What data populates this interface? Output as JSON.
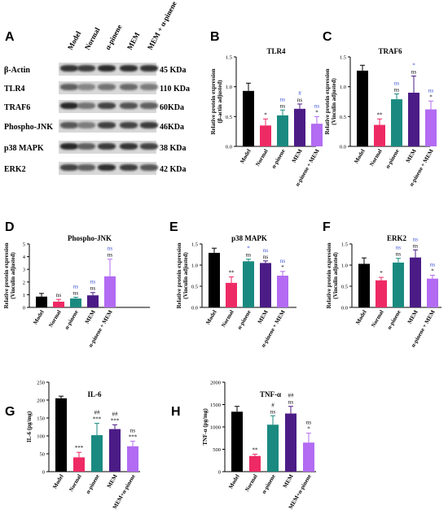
{
  "colors": {
    "Model": "#000000",
    "Normal": "#ee2a64",
    "α-pinene": "#1a8a80",
    "MEM": "#4b1c86",
    "combo": "#b26bf2",
    "sig_black": "#000000",
    "sig_blue": "#3a4fd6"
  },
  "panel_A": {
    "letter": "A",
    "lanes": [
      "Model",
      "Normal",
      "α-pinene",
      "MEM",
      "MEM + α-pinene"
    ],
    "rows": [
      {
        "protein": "β-Actin",
        "kda": "45 KDa",
        "intensity": [
          0.78,
          0.72,
          0.82,
          0.8,
          0.78
        ]
      },
      {
        "protein": "TLR4",
        "kda": "110 KDa",
        "intensity": [
          0.55,
          0.35,
          0.45,
          0.5,
          0.4
        ]
      },
      {
        "protein": "TRAF6",
        "kda": "60KDa",
        "intensity": [
          0.85,
          0.45,
          0.7,
          0.62,
          0.55
        ]
      },
      {
        "protein": "Phospho-JNK",
        "kda": "46KDa",
        "intensity": [
          0.6,
          0.4,
          0.72,
          0.7,
          0.75
        ]
      },
      {
        "protein": "p38 MAPK",
        "kda": "38 KDa",
        "intensity": [
          0.85,
          0.55,
          0.75,
          0.78,
          0.7
        ]
      },
      {
        "protein": "ERK2",
        "kda": "42 KDa",
        "intensity": [
          0.7,
          0.55,
          0.8,
          0.72,
          0.6
        ]
      }
    ]
  },
  "chart_data": [
    {
      "panel": "B",
      "type": "bar",
      "title": "TLR4",
      "ylabel": "Relative protein expression\n(β-actin adjusted)",
      "ylim": [
        0,
        1.5
      ],
      "yticks": [
        "0.0",
        "0.5",
        "1.0",
        "1.5"
      ],
      "categories": [
        "Model",
        "Normal",
        "α-pinene",
        "MEM",
        "α-pinene + MEM"
      ],
      "values": [
        0.93,
        0.35,
        0.52,
        0.63,
        0.38
      ],
      "errors": [
        0.13,
        0.11,
        0.09,
        0.08,
        0.12
      ],
      "annotations": [
        [],
        [
          "*"
        ],
        [
          "ns",
          "ns"
        ],
        [
          "#",
          "ns"
        ],
        [
          "ns",
          "*"
        ]
      ],
      "annotation_colors": [
        [],
        [
          "black"
        ],
        [
          "blue",
          "black"
        ],
        [
          "blue",
          "black"
        ],
        [
          "blue",
          "black"
        ]
      ]
    },
    {
      "panel": "C",
      "type": "bar",
      "title": "TRAF6",
      "ylabel": "Relative protein expression\n(Vinculin adjusted)",
      "ylim": [
        0,
        1.5
      ],
      "yticks": [
        "0.0",
        "0.5",
        "1.0",
        "1.5"
      ],
      "categories": [
        "Model",
        "Normal",
        "α-pinene",
        "MEM",
        "α-pinene + MEM"
      ],
      "values": [
        1.27,
        0.36,
        0.79,
        0.9,
        0.62
      ],
      "errors": [
        0.09,
        0.1,
        0.09,
        0.28,
        0.14
      ],
      "annotations": [
        [],
        [
          "**"
        ],
        [
          "ns",
          "ns"
        ],
        [
          "*",
          "ns"
        ],
        [
          "ns",
          "*"
        ]
      ],
      "annotation_colors": [
        [],
        [
          "black"
        ],
        [
          "blue",
          "black"
        ],
        [
          "blue",
          "black"
        ],
        [
          "blue",
          "black"
        ]
      ]
    },
    {
      "panel": "D",
      "type": "bar",
      "title": "Phospho-JNK",
      "ylabel": "Relative protein expression\n(Vinculin adjusted)",
      "ylim": [
        0,
        5
      ],
      "yticks": [
        "0",
        "1",
        "2",
        "3",
        "4",
        "5"
      ],
      "categories": [
        "Model",
        "Normal",
        "α-pinene",
        "MEM",
        "α-pinene + MEM"
      ],
      "values": [
        0.85,
        0.45,
        0.7,
        0.95,
        2.45
      ],
      "errors": [
        0.25,
        0.18,
        0.1,
        0.22,
        1.35
      ],
      "annotations": [
        [],
        [
          "ns"
        ],
        [
          "ns",
          "ns"
        ],
        [
          "ns",
          "ns"
        ],
        [
          "ns",
          "ns"
        ]
      ],
      "annotation_colors": [
        [],
        [
          "black"
        ],
        [
          "blue",
          "black"
        ],
        [
          "blue",
          "black"
        ],
        [
          "blue",
          "black"
        ]
      ]
    },
    {
      "panel": "E",
      "type": "bar",
      "title": "p38 MAPK",
      "ylabel": "Relative protein expression\n(Vinculin adjusted)",
      "ylim": [
        0,
        1.5
      ],
      "yticks": [
        "0.0",
        "0.5",
        "1.0",
        "1.5"
      ],
      "categories": [
        "Model",
        "Normal",
        "α-pinene",
        "MEM",
        "α-pinene + MEM"
      ],
      "values": [
        1.29,
        0.58,
        1.09,
        1.05,
        0.75
      ],
      "errors": [
        0.11,
        0.14,
        0.05,
        0.05,
        0.1
      ],
      "annotations": [
        [],
        [
          "**"
        ],
        [
          "*",
          "ns"
        ],
        [
          "ns",
          "ns"
        ],
        [
          "ns",
          "*"
        ]
      ],
      "annotation_colors": [
        [],
        [
          "black"
        ],
        [
          "blue",
          "black"
        ],
        [
          "blue",
          "black"
        ],
        [
          "blue",
          "black"
        ]
      ]
    },
    {
      "panel": "F",
      "type": "bar",
      "title": "ERK2",
      "ylabel": "Relative protein expression\n(Vinculin adjusted)",
      "ylim": [
        0,
        1.5
      ],
      "yticks": [
        "0.0",
        "0.5",
        "1.0",
        "1.5"
      ],
      "categories": [
        "Model",
        "Normal",
        "α-pinene",
        "MEM",
        "α-pinene + MEM"
      ],
      "values": [
        1.03,
        0.64,
        1.06,
        1.18,
        0.68
      ],
      "errors": [
        0.14,
        0.07,
        0.1,
        0.18,
        0.08
      ],
      "annotations": [
        [],
        [
          "*"
        ],
        [
          "ns",
          "ns"
        ],
        [
          "ns",
          "ns"
        ],
        [
          "ns",
          "*"
        ]
      ],
      "annotation_colors": [
        [],
        [
          "black"
        ],
        [
          "blue",
          "black"
        ],
        [
          "blue",
          "black"
        ],
        [
          "blue",
          "black"
        ]
      ]
    },
    {
      "panel": "G",
      "type": "bar",
      "title": "IL-6",
      "ylabel": "IL-6 (pg/mg)",
      "ylim": [
        0,
        250
      ],
      "yticks": [
        "0",
        "50",
        "100",
        "150",
        "200",
        "250"
      ],
      "categories": [
        "Model",
        "Normal",
        "α-pinene",
        "MEM",
        "MEM+α-pinene"
      ],
      "values": [
        205,
        40,
        102,
        119,
        71
      ],
      "errors": [
        6,
        14,
        33,
        12,
        14
      ],
      "annotations": [
        [],
        [
          "***"
        ],
        [
          "##",
          "***"
        ],
        [
          "##",
          "***"
        ],
        [
          "ns",
          "***"
        ]
      ],
      "annotation_colors": [
        [],
        [
          "black"
        ],
        [
          "black",
          "black"
        ],
        [
          "black",
          "black"
        ],
        [
          "black",
          "black"
        ]
      ]
    },
    {
      "panel": "H",
      "type": "bar",
      "title": "TNF-α",
      "ylabel": "TNF-α (pg/mg)",
      "ylim": [
        0,
        2000
      ],
      "yticks": [
        "0",
        "500",
        "1000",
        "1500",
        "2000"
      ],
      "categories": [
        "Model",
        "Normal",
        "α-pinene",
        "MEM",
        "MEM+α-pinene"
      ],
      "values": [
        1340,
        350,
        1050,
        1300,
        650
      ],
      "errors": [
        120,
        40,
        200,
        160,
        210
      ],
      "annotations": [
        [],
        [
          "**"
        ],
        [
          "#",
          "ns"
        ],
        [
          "##",
          "ns"
        ],
        [
          "ns",
          "*"
        ]
      ],
      "annotation_colors": [
        [],
        [
          "black"
        ],
        [
          "black",
          "black"
        ],
        [
          "black",
          "black"
        ],
        [
          "black",
          "black"
        ]
      ]
    }
  ]
}
